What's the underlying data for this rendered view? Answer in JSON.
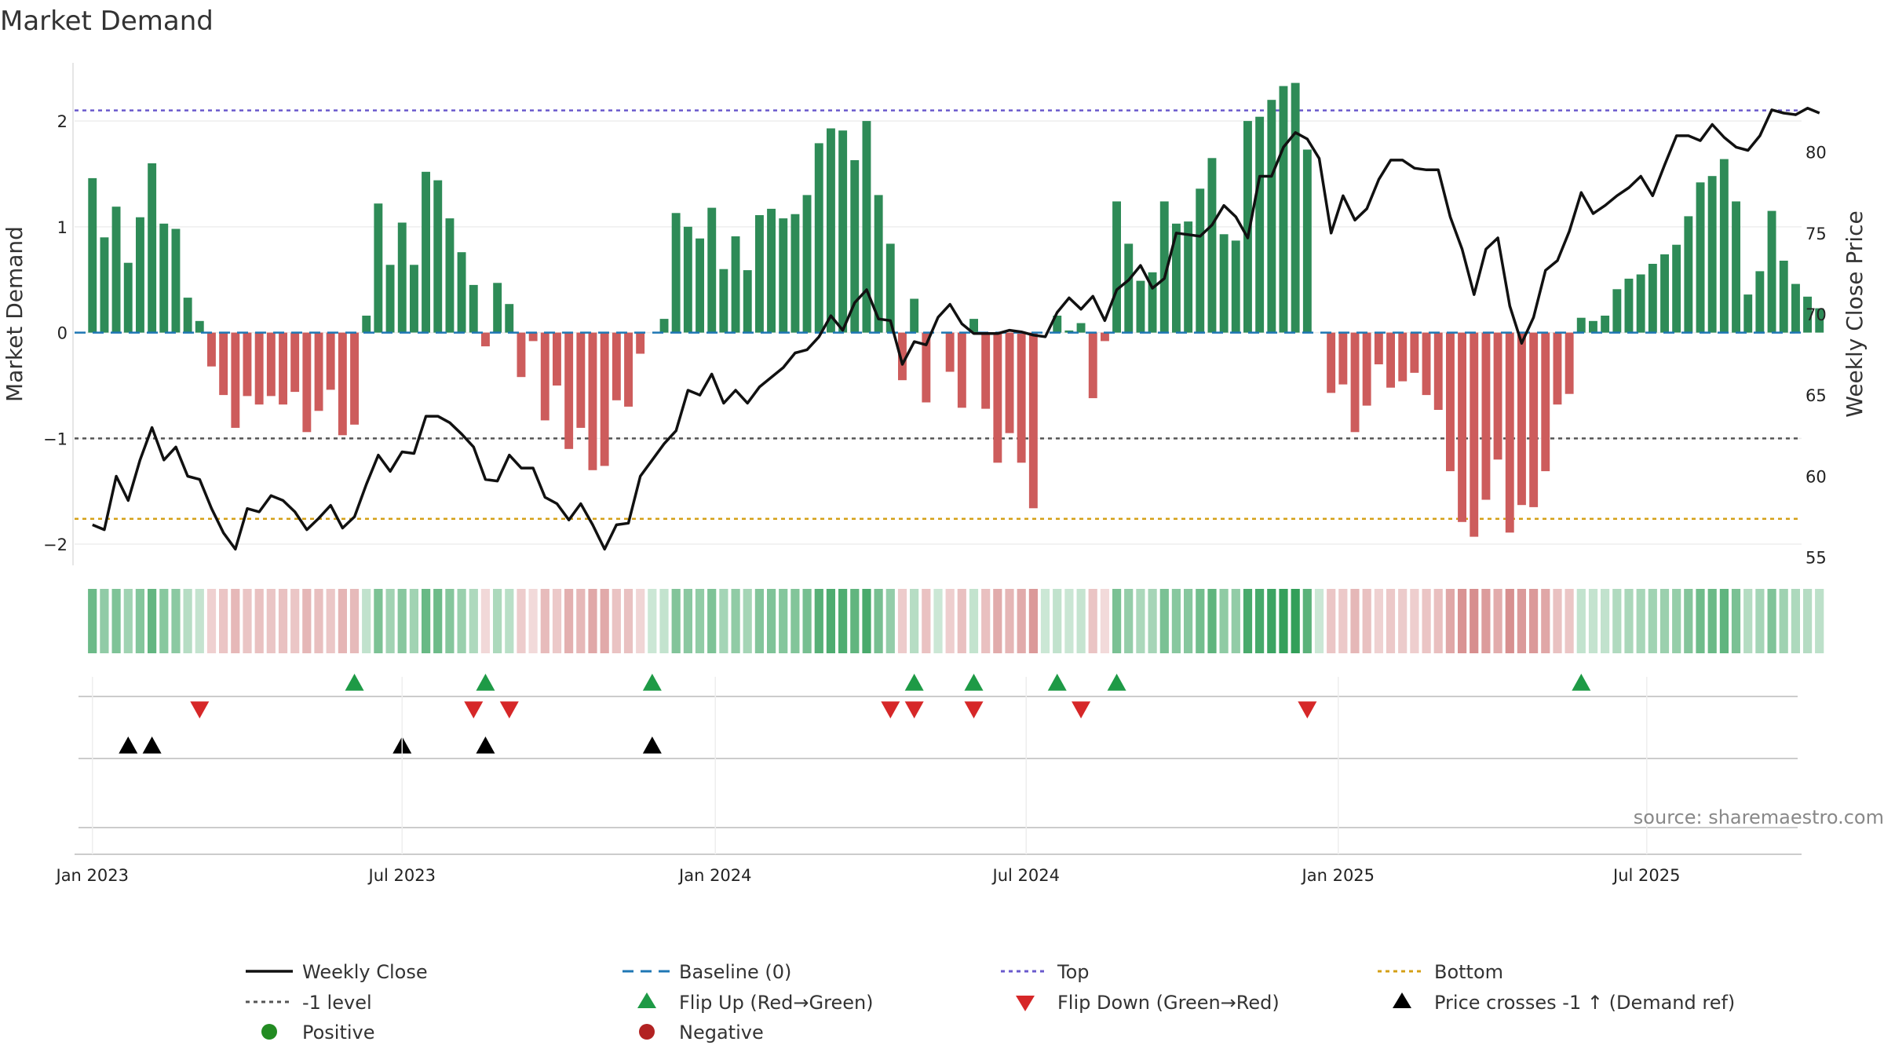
{
  "chart_data": {
    "type": "bar",
    "title": "Market Demand",
    "ylabel_left": "Market Demand",
    "ylabel_right": "Weekly Close Price",
    "ylim_left": [
      -2.2,
      2.55
    ],
    "ylim_right": [
      54.5,
      85.5
    ],
    "yticks_left": [
      "2",
      "1",
      "0",
      "−1",
      "−2"
    ],
    "yticks_left_values": [
      2,
      1,
      0,
      -1,
      -2
    ],
    "yticks_right": [
      "80",
      "75",
      "70",
      "65",
      "60",
      "55"
    ],
    "yticks_right_values": [
      80,
      75,
      70,
      65,
      60,
      55
    ],
    "x_range_weeks": [
      -1.5,
      143.5
    ],
    "xtick_labels": [
      "Jan 2023",
      "Jul 2023",
      "Jan 2024",
      "Jul 2024",
      "Jan 2025",
      "Jul 2025"
    ],
    "xtick_weeks": [
      0,
      26,
      52.3,
      78.4,
      104.6,
      130.5
    ],
    "reference_lines": {
      "top": 2.1,
      "minus_one": -1,
      "bottom": -1.76,
      "baseline": 0
    },
    "demand": [
      1.46,
      0.9,
      1.19,
      0.66,
      1.09,
      1.6,
      1.03,
      0.98,
      0.33,
      0.11,
      -0.32,
      -0.59,
      -0.9,
      -0.6,
      -0.68,
      -0.6,
      -0.68,
      -0.56,
      -0.94,
      -0.74,
      -0.54,
      -0.97,
      -0.87,
      0.16,
      1.22,
      0.64,
      1.04,
      0.64,
      1.52,
      1.44,
      1.08,
      0.76,
      0.45,
      -0.13,
      0.47,
      0.27,
      -0.42,
      -0.08,
      -0.83,
      -0.5,
      -1.1,
      -0.9,
      -1.3,
      -1.26,
      -0.64,
      -0.7,
      -0.2,
      0,
      0.13,
      1.13,
      1.0,
      0.89,
      1.18,
      0.6,
      0.91,
      0.59,
      1.11,
      1.17,
      1.08,
      1.12,
      1.3,
      1.79,
      1.93,
      1.91,
      1.63,
      2.0,
      1.3,
      0.84,
      -0.45,
      0.32,
      -0.66,
      0,
      -0.37,
      -0.71,
      0.13,
      -0.72,
      -1.23,
      -0.95,
      -1.23,
      -1.66,
      0,
      0.16,
      0.02,
      0.09,
      -0.62,
      -0.08,
      1.24,
      0.84,
      0.49,
      0.57,
      1.24,
      1.03,
      1.05,
      1.36,
      1.65,
      0.93,
      0.87,
      2.0,
      2.04,
      2.2,
      2.33,
      2.36,
      1.73,
      0,
      -0.57,
      -0.49,
      -0.94,
      -0.69,
      -0.3,
      -0.52,
      -0.46,
      -0.38,
      -0.59,
      -0.73,
      -1.31,
      -1.79,
      -1.93,
      -1.58,
      -1.2,
      -1.89,
      -1.63,
      -1.65,
      -1.31,
      -0.68,
      -0.58,
      0.14,
      0.11,
      0.16,
      0.41,
      0.51,
      0.55,
      0.65,
      0.74,
      0.83,
      1.1,
      1.42,
      1.48,
      1.64,
      1.24,
      0.36,
      0.58,
      1.15,
      0.68,
      0.46,
      0.34,
      0.23
    ],
    "weekly_close": [
      57.0,
      56.7,
      60.0,
      58.5,
      61.0,
      63.0,
      61.0,
      61.8,
      60.0,
      59.8,
      58.0,
      56.5,
      55.5,
      58.0,
      57.8,
      58.8,
      58.5,
      57.8,
      56.7,
      57.4,
      58.2,
      56.8,
      57.5,
      59.5,
      61.3,
      60.3,
      61.5,
      61.4,
      63.7,
      63.7,
      63.3,
      62.6,
      61.8,
      59.8,
      59.7,
      61.3,
      60.5,
      60.5,
      58.7,
      58.3,
      57.3,
      58.3,
      57.0,
      55.5,
      57.0,
      57.1,
      60.0,
      61.0,
      62.0,
      62.8,
      65.3,
      65.0,
      66.3,
      64.5,
      65.3,
      64.5,
      65.5,
      66.1,
      66.7,
      67.6,
      67.8,
      68.6,
      69.9,
      69.0,
      70.7,
      71.5,
      69.7,
      69.6,
      66.9,
      68.3,
      68.1,
      69.8,
      70.6,
      69.4,
      68.8,
      68.8,
      68.8,
      69.0,
      68.9,
      68.7,
      68.6,
      70.1,
      71.0,
      70.3,
      71.1,
      69.6,
      71.5,
      72.1,
      73.0,
      71.6,
      72.2,
      75.0,
      74.9,
      74.8,
      75.5,
      76.7,
      76.0,
      74.7,
      78.5,
      78.5,
      80.3,
      81.2,
      80.8,
      79.6,
      75.0,
      77.3,
      75.8,
      76.5,
      78.3,
      79.5,
      79.5,
      79.0,
      78.9,
      78.9,
      76.0,
      74.0,
      71.2,
      74.0,
      74.7,
      70.5,
      68.2,
      69.8,
      72.7,
      73.3,
      75.1,
      77.5,
      76.2,
      76.7,
      77.3,
      77.8,
      78.5,
      77.3,
      79.2,
      81.0,
      81.0,
      80.7,
      81.7,
      80.9,
      80.3,
      80.1,
      81.0,
      82.6,
      82.4,
      82.3,
      82.7,
      82.4
    ],
    "flip_up_weeks": [
      22,
      33,
      47,
      69,
      74,
      81,
      86,
      125
    ],
    "flip_down_weeks": [
      9,
      32,
      35,
      67,
      69,
      74,
      83,
      102
    ],
    "price_cross_weeks": [
      3,
      5,
      26,
      33,
      47
    ]
  },
  "legend": [
    {
      "key": "weekly_close",
      "label": "Weekly Close"
    },
    {
      "key": "baseline",
      "label": "Baseline (0)"
    },
    {
      "key": "top",
      "label": "Top"
    },
    {
      "key": "bottom",
      "label": "Bottom"
    },
    {
      "key": "minus_one",
      "label": "-1 level"
    },
    {
      "key": "flip_up",
      "label": "Flip Up (Red→Green)"
    },
    {
      "key": "flip_down",
      "label": "Flip Down (Green→Red)"
    },
    {
      "key": "price_cross",
      "label": "Price crosses -1 ↑ (Demand ref)"
    },
    {
      "key": "positive",
      "label": "Positive"
    },
    {
      "key": "negative",
      "label": "Negative"
    }
  ],
  "source_text": "source: sharemaestro.com",
  "colors": {
    "positive": "#2e8b57",
    "negative": "#cd5c5c",
    "price": "#111111",
    "baseline": "#1f77b4",
    "top": "#6a5acd",
    "bottom": "#d4a017",
    "minus_one": "#555555",
    "flip_up": "#1e9a46",
    "flip_down": "#d62728",
    "price_cross": "#000000",
    "positive_dot": "#228b22",
    "negative_dot": "#b22222"
  }
}
